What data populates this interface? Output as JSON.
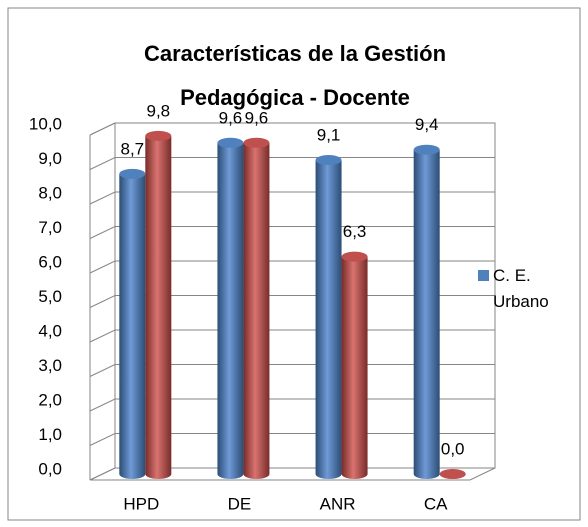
{
  "chart_data": {
    "type": "bar3d",
    "title": "Características de la Gestión Pedagógica - Docente",
    "categories": [
      "HPD",
      "DE",
      "ANR",
      "CA"
    ],
    "series": [
      {
        "name": "C. E. Urbano",
        "color": "#4f81bd",
        "values": [
          8.7,
          9.6,
          9.1,
          9.4
        ],
        "value_labels": [
          "8,7",
          "9,6",
          "9,1",
          "9,4"
        ]
      },
      {
        "color": "#c0504d",
        "values": [
          9.8,
          9.6,
          6.3,
          0.0
        ],
        "value_labels": [
          "9,8",
          "9,6",
          "6,3",
          "0,0"
        ]
      }
    ],
    "ylim": [
      0,
      10
    ],
    "yticks": [
      {
        "value": 0,
        "label": "0,0"
      },
      {
        "value": 1,
        "label": "1,0"
      },
      {
        "value": 2,
        "label": "2,0"
      },
      {
        "value": 3,
        "label": "3,0"
      },
      {
        "value": 4,
        "label": "4,0"
      },
      {
        "value": 5,
        "label": "5,0"
      },
      {
        "value": 6,
        "label": "6,0"
      },
      {
        "value": 7,
        "label": "7,0"
      },
      {
        "value": 8,
        "label": "8,0"
      },
      {
        "value": 9,
        "label": "9,0"
      },
      {
        "value": 10,
        "label": "10,0"
      }
    ],
    "grid": true,
    "legend": "right"
  }
}
